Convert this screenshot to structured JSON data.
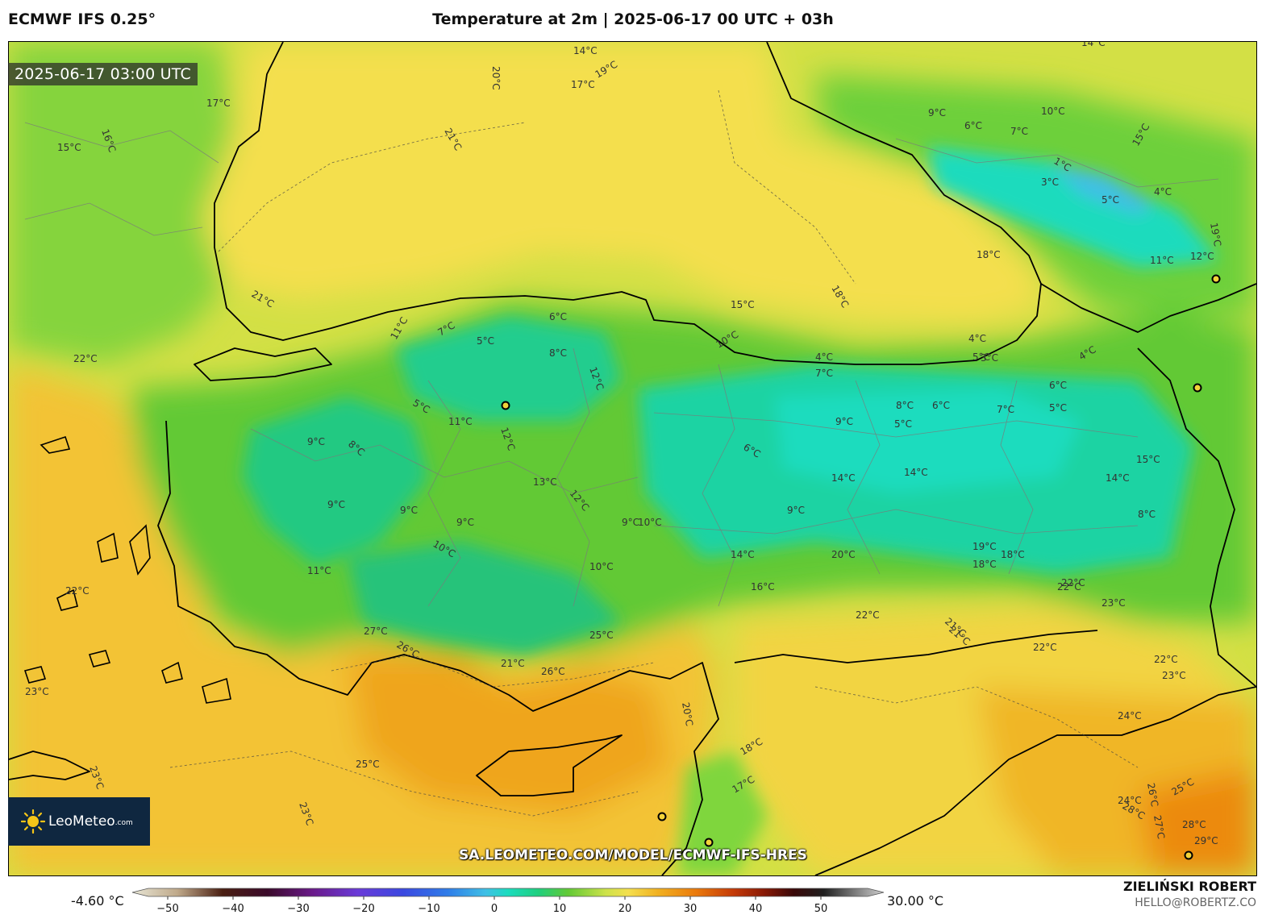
{
  "header": {
    "model": "ECMWF IFS 0.25°",
    "title": "Temperature at 2m | 2025-06-17 00 UTC + 03h"
  },
  "map": {
    "valid_time": "2025-06-17 03:00 UTC",
    "logo_name": "LeoMeteo",
    "logo_domain": ".com",
    "watermark_url": "SA.LEOMETEO.COM/MODEL/ECMWF-IFS-HRES",
    "contour_labels": [
      {
        "text": "20°C"
      },
      {
        "text": "14°C"
      },
      {
        "text": "17°C"
      },
      {
        "text": "19°C"
      },
      {
        "text": "21°C"
      },
      {
        "text": "17°C"
      },
      {
        "text": "16°C"
      },
      {
        "text": "15°C"
      },
      {
        "text": "9°C"
      },
      {
        "text": "6°C"
      },
      {
        "text": "7°C"
      },
      {
        "text": "10°C"
      },
      {
        "text": "14°C"
      },
      {
        "text": "15°C"
      },
      {
        "text": "1°C"
      },
      {
        "text": "3°C"
      },
      {
        "text": "5°C"
      },
      {
        "text": "4°C"
      },
      {
        "text": "18°C"
      },
      {
        "text": "18°C"
      },
      {
        "text": "19°C"
      },
      {
        "text": "11°C"
      },
      {
        "text": "12°C"
      },
      {
        "text": "21°C"
      },
      {
        "text": "15°C"
      },
      {
        "text": "11°C"
      },
      {
        "text": "7°C"
      },
      {
        "text": "5°C"
      },
      {
        "text": "6°C"
      },
      {
        "text": "8°C"
      },
      {
        "text": "12°C"
      },
      {
        "text": "10°C"
      },
      {
        "text": "22°C"
      },
      {
        "text": "4°C"
      },
      {
        "text": "7°C"
      },
      {
        "text": "5°C"
      },
      {
        "text": "4°C"
      },
      {
        "text": "3°C"
      },
      {
        "text": "5°C"
      },
      {
        "text": "11°C"
      },
      {
        "text": "12°C"
      },
      {
        "text": "9°C"
      },
      {
        "text": "8°C"
      },
      {
        "text": "8°C"
      },
      {
        "text": "6°C"
      },
      {
        "text": "7°C"
      },
      {
        "text": "6°C"
      },
      {
        "text": "4°C"
      },
      {
        "text": "5°C"
      },
      {
        "text": "9°C"
      },
      {
        "text": "6°C"
      },
      {
        "text": "5°C"
      },
      {
        "text": "15°C"
      },
      {
        "text": "13°C"
      },
      {
        "text": "12°C"
      },
      {
        "text": "9°C"
      },
      {
        "text": "9°C"
      },
      {
        "text": "9°C"
      },
      {
        "text": "14°C"
      },
      {
        "text": "14°C"
      },
      {
        "text": "9°C"
      },
      {
        "text": "14°C"
      },
      {
        "text": "8°C"
      },
      {
        "text": "10°C"
      },
      {
        "text": "11°C"
      },
      {
        "text": "9°C"
      },
      {
        "text": "10°C"
      },
      {
        "text": "10°C"
      },
      {
        "text": "14°C"
      },
      {
        "text": "16°C"
      },
      {
        "text": "20°C"
      },
      {
        "text": "19°C"
      },
      {
        "text": "18°C"
      },
      {
        "text": "22°C"
      },
      {
        "text": "22°C"
      },
      {
        "text": "21°C"
      },
      {
        "text": "23°C"
      },
      {
        "text": "22°C"
      },
      {
        "text": "22°C"
      },
      {
        "text": "27°C"
      },
      {
        "text": "26°C"
      },
      {
        "text": "21°C"
      },
      {
        "text": "26°C"
      },
      {
        "text": "25°C"
      },
      {
        "text": "23°C"
      },
      {
        "text": "23°C"
      },
      {
        "text": "25°C"
      },
      {
        "text": "23°C"
      },
      {
        "text": "24°C"
      },
      {
        "text": "20°C"
      },
      {
        "text": "18°C"
      },
      {
        "text": "17°C"
      },
      {
        "text": "23°C"
      },
      {
        "text": "24°C"
      },
      {
        "text": "26°C"
      },
      {
        "text": "28°C"
      },
      {
        "text": "27°C"
      },
      {
        "text": "28°C"
      },
      {
        "text": "29°C"
      },
      {
        "text": "25°C"
      },
      {
        "text": "22°C"
      },
      {
        "text": "21°C"
      },
      {
        "text": "18°C"
      },
      {
        "text": "22°C"
      }
    ]
  },
  "colorbar": {
    "min_label": "-4.60 °C",
    "max_label": "30.00 °C",
    "ticks": [
      "−50",
      "−40",
      "−30",
      "−20",
      "−10",
      "0",
      "10",
      "20",
      "30",
      "40",
      "50"
    ]
  },
  "credits": {
    "author": "ZIELIŃSKI ROBERT",
    "email": "HELLO@ROBERTZ.CO"
  },
  "colors": {
    "sea_black": "#f4dc4a",
    "sea_med": "#f1b020",
    "land_warm": "#cde24a",
    "land_green": "#62c935",
    "land_cool": "#1fcf7f",
    "land_cold": "#1cdab0",
    "hot_spot": "#ee9011"
  }
}
